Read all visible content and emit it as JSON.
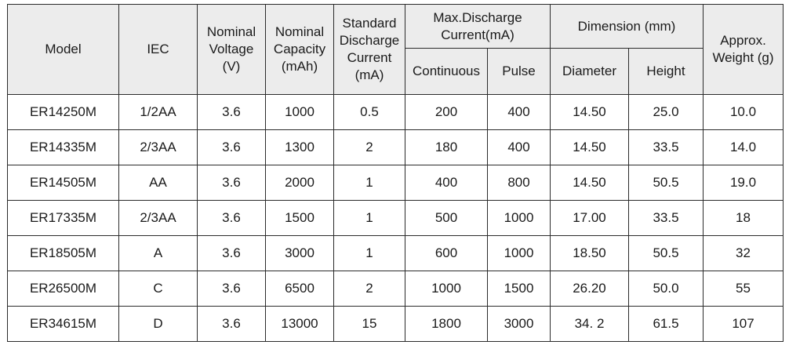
{
  "header": {
    "model": "Model",
    "iec": "IEC",
    "voltage": [
      "Nominal",
      "Voltage",
      "(V)"
    ],
    "capacity": [
      "Nominal",
      "Capacity",
      "(mAh)"
    ],
    "std_discharge": [
      "Standard",
      "Discharge",
      "Current",
      "(mA)"
    ],
    "max_discharge": [
      "Max.Discharge",
      "Current(mA)"
    ],
    "continuous": "Continuous",
    "pulse": "Pulse",
    "dimension": "Dimension (mm)",
    "diameter": "Diameter",
    "height": "Height",
    "weight": [
      "Approx.",
      "Weight (g)"
    ]
  },
  "rows": [
    [
      "ER14250M",
      "1/2AA",
      "3.6",
      "1000",
      "0.5",
      "200",
      "400",
      "14.50",
      "25.0",
      "10.0"
    ],
    [
      "ER14335M",
      "2/3AA",
      "3.6",
      "1300",
      "2",
      "180",
      "400",
      "14.50",
      "33.5",
      "14.0"
    ],
    [
      "ER14505M",
      "AA",
      "3.6",
      "2000",
      "1",
      "400",
      "800",
      "14.50",
      "50.5",
      "19.0"
    ],
    [
      "ER17335M",
      "2/3AA",
      "3.6",
      "1500",
      "1",
      "500",
      "1000",
      "17.00",
      "33.5",
      "18"
    ],
    [
      "ER18505M",
      "A",
      "3.6",
      "3000",
      "1",
      "600",
      "1000",
      "18.50",
      "50.5",
      "32"
    ],
    [
      "ER26500M",
      "C",
      "3.6",
      "6500",
      "2",
      "1000",
      "1500",
      "26.20",
      "50.0",
      "55"
    ],
    [
      "ER34615M",
      "D",
      "3.6",
      "13000",
      "15",
      "1800",
      "3000",
      "34. 2",
      "61.5",
      "107"
    ]
  ]
}
